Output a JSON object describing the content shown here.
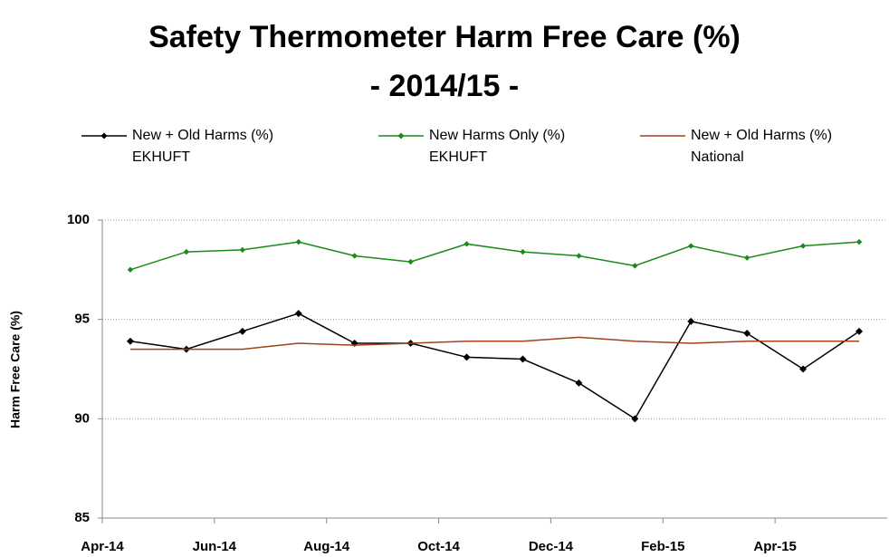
{
  "chart_data": {
    "type": "line",
    "title": "Safety Thermometer Harm Free Care (%)",
    "subtitle": "- 2014/15 -",
    "y_label": "Harm Free Care (%)",
    "categories": [
      "Apr-14",
      null,
      "Jun-14",
      null,
      "Aug-14",
      null,
      "Oct-14",
      null,
      "Dec-14",
      null,
      "Feb-15",
      null,
      "Apr-15",
      null
    ],
    "ylim": [
      85,
      100
    ],
    "yticks": [
      85,
      90,
      95,
      100
    ],
    "grid": true,
    "series": [
      {
        "name": "New + Old Harms (%)\nEKHUFT",
        "color": "#000000",
        "marker": "diamond",
        "values": [
          93.9,
          93.5,
          94.4,
          95.3,
          93.8,
          93.8,
          93.1,
          93.0,
          91.8,
          90.0,
          94.9,
          94.3,
          92.5,
          94.4
        ]
      },
      {
        "name": "New Harms Only (%)\nEKHUFT",
        "color": "#1a8a1a",
        "marker": "diamond",
        "values": [
          97.5,
          98.4,
          98.5,
          98.9,
          98.2,
          97.9,
          98.8,
          98.4,
          98.2,
          97.7,
          98.7,
          98.1,
          98.7,
          98.9
        ]
      },
      {
        "name": "New + Old Harms (%)\nNational",
        "color": "#a0421a",
        "marker": "none",
        "values": [
          93.5,
          93.5,
          93.5,
          93.8,
          93.7,
          93.8,
          93.9,
          93.9,
          94.1,
          93.9,
          93.8,
          93.9,
          93.9,
          93.9
        ]
      }
    ]
  }
}
